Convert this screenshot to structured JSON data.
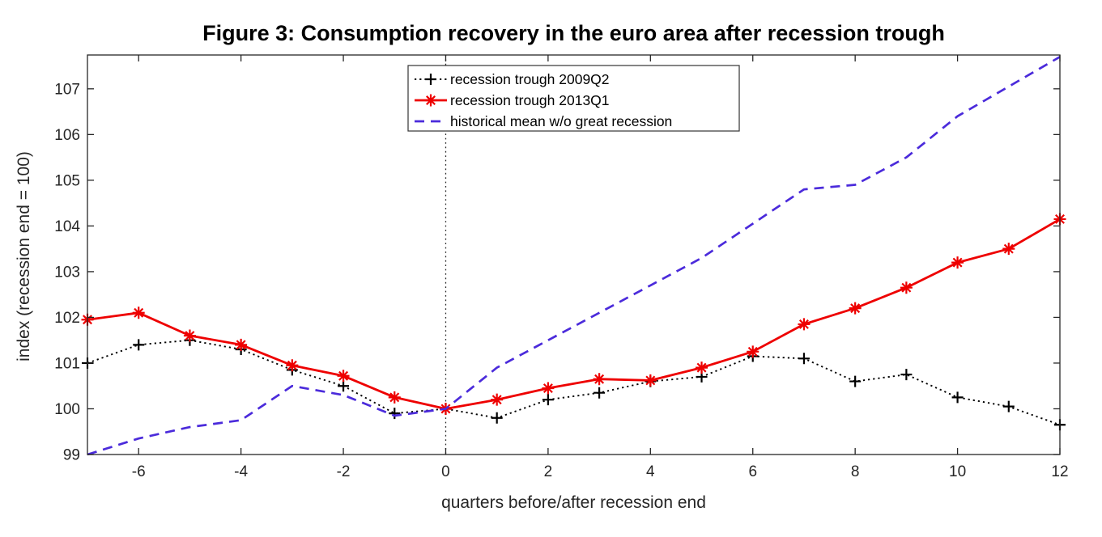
{
  "chart_data": {
    "type": "line",
    "title": "Figure 3: Consumption recovery in the euro area after recession trough",
    "xlabel": "quarters before/after recession end",
    "ylabel": "index (recession end = 100)",
    "xlim": [
      -7,
      12
    ],
    "ylim": [
      99,
      107.74
    ],
    "x_ticks": [
      -6,
      -4,
      -2,
      0,
      2,
      4,
      6,
      8,
      10,
      12
    ],
    "y_ticks": [
      99,
      100,
      101,
      102,
      103,
      104,
      105,
      106,
      107
    ],
    "grid": false,
    "legend_position": "top-center-inside",
    "reference_line": {
      "axis": "x",
      "value": 0,
      "style": "dotted",
      "color": "#2b2b2b"
    },
    "axis_color": "#262626",
    "x": [
      -7,
      -6,
      -5,
      -4,
      -3,
      -2,
      -1,
      0,
      1,
      2,
      3,
      4,
      5,
      6,
      7,
      8,
      9,
      10,
      11,
      12
    ],
    "series": [
      {
        "name": "recession trough 2009Q2",
        "color": "#000000",
        "line_style": "dotted",
        "line_width": 1.9,
        "marker": "plus",
        "values": [
          101.0,
          101.4,
          101.5,
          101.3,
          100.85,
          100.5,
          99.9,
          100.0,
          99.8,
          100.2,
          100.35,
          100.6,
          100.7,
          101.15,
          101.1,
          100.6,
          100.75,
          100.25,
          100.05,
          99.65
        ]
      },
      {
        "name": "recession trough 2013Q1",
        "color": "#ee0000",
        "line_style": "solid",
        "line_width": 2.8,
        "marker": "asterisk",
        "values": [
          101.95,
          102.1,
          101.6,
          101.4,
          100.95,
          100.72,
          100.25,
          100.0,
          100.2,
          100.45,
          100.65,
          100.62,
          100.9,
          101.25,
          101.85,
          102.2,
          102.65,
          103.2,
          103.5,
          104.15
        ]
      },
      {
        "name": "historical mean w/o great recession",
        "color": "#4b2bdb",
        "line_style": "dashed",
        "line_width": 2.7,
        "marker": "none",
        "values": [
          99.0,
          99.35,
          99.6,
          99.75,
          100.5,
          100.3,
          99.85,
          100.0,
          100.9,
          101.5,
          102.1,
          102.7,
          103.3,
          104.05,
          104.8,
          104.9,
          105.5,
          106.4,
          107.05,
          107.7
        ]
      }
    ]
  }
}
